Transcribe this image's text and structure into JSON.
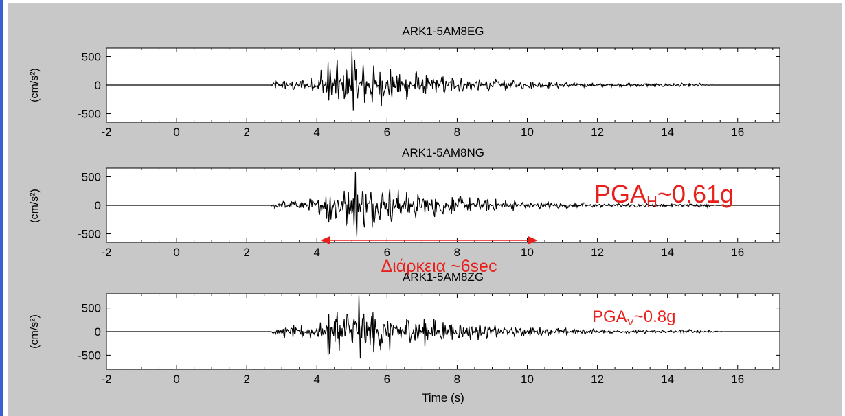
{
  "chart_data": [
    {
      "type": "line",
      "title": "ARK1-5AM8EG",
      "xlabel": "",
      "ylabel": "(cm/s²)",
      "xlim": [
        -2,
        17.2
      ],
      "ylim": [
        -650,
        650
      ],
      "xticks": [
        "-2",
        "0",
        "2",
        "4",
        "6",
        "8",
        "10",
        "12",
        "14",
        "16"
      ],
      "yticks": [
        "500",
        "0",
        "-500"
      ],
      "signal": {
        "onset": 2.7,
        "end": 15.0,
        "peak_time": 5.0,
        "peak_positive": 600,
        "peak_negative": -450
      },
      "series": [
        {
          "values_description_free": true
        }
      ]
    },
    {
      "type": "line",
      "title": "ARK1-5AM8NG",
      "xlabel": "",
      "ylabel": "(cm/s²)",
      "xlim": [
        -2,
        17.2
      ],
      "ylim": [
        -650,
        650
      ],
      "xticks": [
        "-2",
        "0",
        "2",
        "4",
        "6",
        "8",
        "10",
        "12",
        "14",
        "16"
      ],
      "yticks": [
        "500",
        "0",
        "-500"
      ],
      "signal": {
        "onset": 2.7,
        "end": 15.2,
        "peak_time": 5.1,
        "peak_positive": 600,
        "peak_negative": -560
      },
      "annotations": [
        {
          "text_main": "PGA",
          "text_sub": "H",
          "text_tail": "~0.61g"
        },
        {
          "text": "Διάρκεια ~6sec",
          "x_start": 4.1,
          "x_end": 10.3
        }
      ]
    },
    {
      "type": "line",
      "title": "ARK1-5AM8ZG",
      "xlabel": "Time (s)",
      "ylabel": "(cm/s²)",
      "xlim": [
        -2,
        17.2
      ],
      "ylim": [
        -800,
        800
      ],
      "xticks": [
        "-2",
        "0",
        "2",
        "4",
        "6",
        "8",
        "10",
        "12",
        "14",
        "16"
      ],
      "yticks": [
        "500",
        "0",
        "-500"
      ],
      "signal": {
        "onset": 2.7,
        "end": 15.3,
        "peak_time": 5.2,
        "peak_positive": 780,
        "peak_negative": -580
      },
      "annotations": [
        {
          "text_main": "PGA",
          "text_sub": "V",
          "text_tail": "~0.8g"
        }
      ]
    }
  ],
  "colors": {
    "background": "#c8c8c8",
    "plot": "#ffffff",
    "trace": "#000000",
    "annotation": "#e8201c",
    "left_bar": "#3a5fd0"
  }
}
